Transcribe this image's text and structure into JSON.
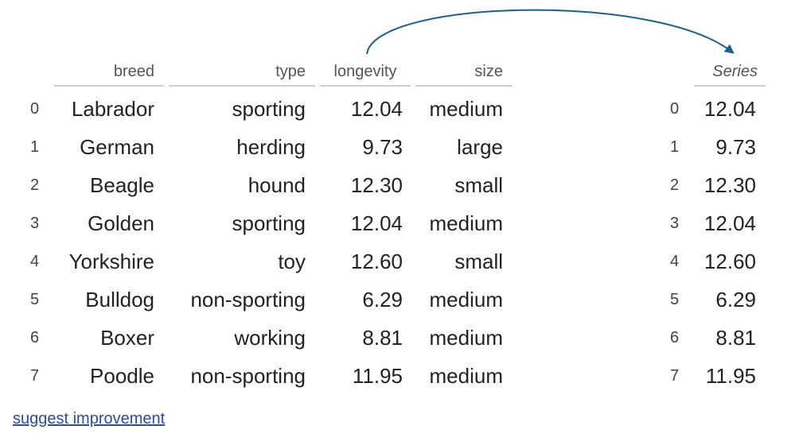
{
  "dataframe": {
    "columns": [
      "breed",
      "type",
      "longevity",
      "size"
    ],
    "index": [
      "0",
      "1",
      "2",
      "3",
      "4",
      "5",
      "6",
      "7"
    ],
    "rows": [
      [
        "Labrador",
        "sporting",
        "12.04",
        "medium"
      ],
      [
        "German",
        "herding",
        "9.73",
        "large"
      ],
      [
        "Beagle",
        "hound",
        "12.30",
        "small"
      ],
      [
        "Golden",
        "sporting",
        "12.04",
        "medium"
      ],
      [
        "Yorkshire",
        "toy",
        "12.60",
        "small"
      ],
      [
        "Bulldog",
        "non-sporting",
        "6.29",
        "medium"
      ],
      [
        "Boxer",
        "working",
        "8.81",
        "medium"
      ],
      [
        "Poodle",
        "non-sporting",
        "11.95",
        "medium"
      ]
    ]
  },
  "series": {
    "title": "Series",
    "index": [
      "0",
      "1",
      "2",
      "3",
      "4",
      "5",
      "6",
      "7"
    ],
    "values": [
      "12.04",
      "9.73",
      "12.30",
      "12.04",
      "12.60",
      "6.29",
      "8.81",
      "11.95"
    ]
  },
  "footer": {
    "link": "suggest improvement"
  },
  "colors": {
    "arrow": "#1f5f8b",
    "link": "#2a4d9f",
    "header_rule": "#cfcfcf"
  }
}
